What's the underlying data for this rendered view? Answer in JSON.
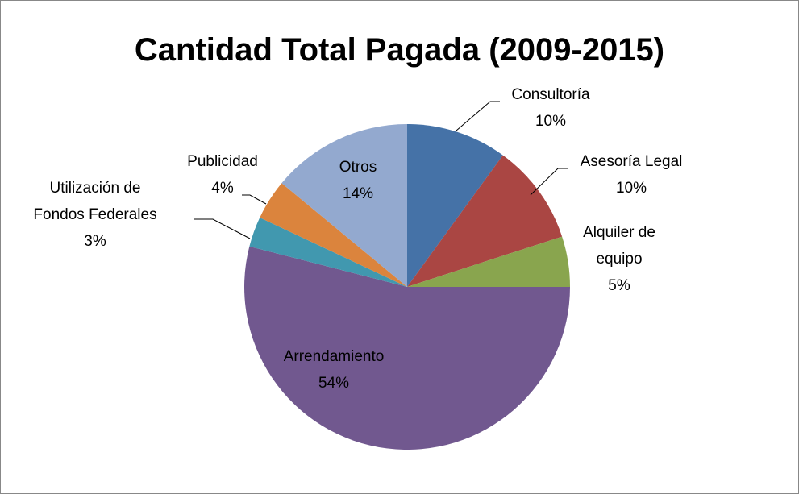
{
  "chart_data": {
    "type": "pie",
    "title": "Cantidad Total Pagada (2009-2015)",
    "categories": [
      "Consultoría",
      "Asesoría Legal",
      "Alquiler de equipo",
      "Arrendamiento",
      "Utilización de Fondos Federales",
      "Publicidad",
      "Otros"
    ],
    "values": [
      10,
      10,
      5,
      54,
      3,
      4,
      14
    ],
    "value_labels": [
      "10%",
      "10%",
      "5%",
      "54%",
      "3%",
      "4%",
      "14%"
    ],
    "colors": [
      "#4572a7",
      "#aa4643",
      "#89a54e",
      "#71588f",
      "#4198af",
      "#db843d",
      "#93a9cf"
    ]
  }
}
